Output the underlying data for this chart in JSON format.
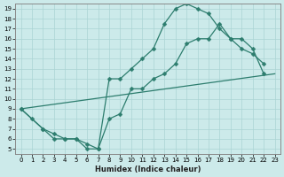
{
  "xlabel": "Humidex (Indice chaleur)",
  "bg_color": "#cceaea",
  "grid_color": "#aad4d4",
  "line_color": "#2d7d6e",
  "xlim": [
    -0.5,
    23.5
  ],
  "ylim": [
    4.5,
    19.5
  ],
  "xticks": [
    0,
    1,
    2,
    3,
    4,
    5,
    6,
    7,
    8,
    9,
    10,
    11,
    12,
    13,
    14,
    15,
    16,
    17,
    18,
    19,
    20,
    21,
    22,
    23
  ],
  "yticks": [
    5,
    6,
    7,
    8,
    9,
    10,
    11,
    12,
    13,
    14,
    15,
    16,
    17,
    18,
    19
  ],
  "line1_x": [
    0,
    1,
    2,
    3,
    4,
    5,
    6,
    7,
    8,
    9,
    10,
    11,
    12,
    13,
    14,
    15,
    16,
    17,
    18,
    19,
    20,
    21,
    22
  ],
  "line1_y": [
    9,
    8,
    7,
    6,
    6,
    6,
    5,
    5,
    12,
    12,
    13,
    14,
    15,
    17.5,
    19,
    19.5,
    19,
    18.5,
    17,
    16,
    15,
    14.5,
    13.5
  ],
  "line2_x": [
    0,
    2,
    3,
    4,
    5,
    6,
    7,
    8,
    9,
    10,
    11,
    12,
    13,
    14,
    15,
    16,
    17,
    18,
    19,
    20,
    21,
    22
  ],
  "line2_y": [
    9,
    7,
    6.5,
    6,
    6,
    5.5,
    5,
    8,
    8.5,
    11,
    11,
    12,
    12.5,
    13.5,
    15.5,
    16,
    16,
    17.5,
    16,
    16,
    15,
    12.5
  ],
  "line3_x": [
    0,
    23
  ],
  "line3_y": [
    9,
    12.5
  ]
}
